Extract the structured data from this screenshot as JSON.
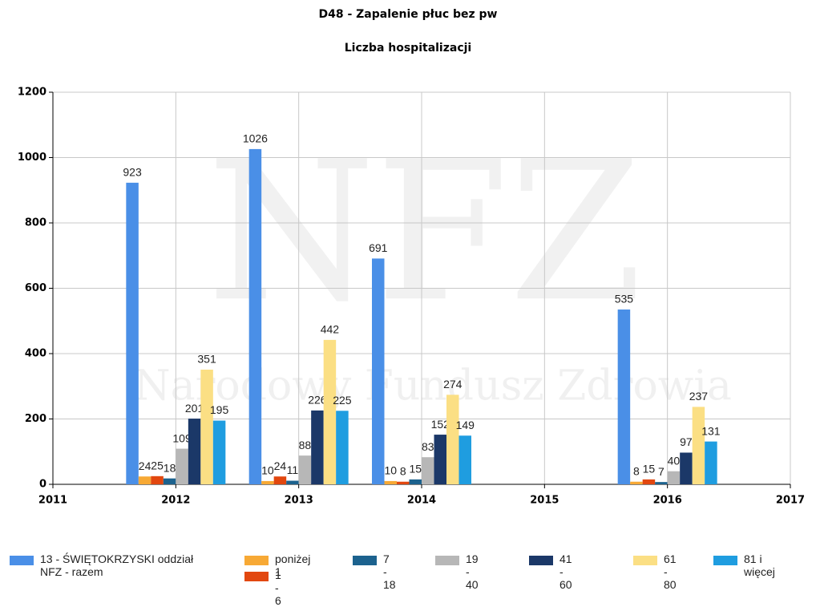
{
  "chart_data": {
    "type": "bar",
    "title": "D48 - Zapalenie płuc bez pw",
    "subtitle": "Liczba hospitalizacji",
    "watermark": [
      "NFZ",
      "Narodowy Fundusz Zdrowia"
    ],
    "x": [
      2012,
      2013,
      2014,
      2016
    ],
    "xlim": [
      2011,
      2017
    ],
    "xticks": [
      2011,
      2012,
      2013,
      2014,
      2015,
      2016,
      2017
    ],
    "ylim": [
      0,
      1200
    ],
    "yticks": [
      0,
      200,
      400,
      600,
      800,
      1000,
      1200
    ],
    "grid": true,
    "legend": "bottom",
    "series": [
      {
        "name": "13 - ŚWIĘTOKRZYSKI oddział NFZ - razem",
        "color": "#4a8fe7",
        "values": [
          923,
          1026,
          691,
          535
        ]
      },
      {
        "name": "poniżej 1",
        "color": "#f7a935",
        "values": [
          24,
          10,
          10,
          8
        ]
      },
      {
        "name": "1 - 6",
        "color": "#e2470f",
        "values": [
          25,
          24,
          8,
          15
        ]
      },
      {
        "name": "7 - 18",
        "color": "#1c628e",
        "values": [
          18,
          11,
          15,
          7
        ]
      },
      {
        "name": "19 - 40",
        "color": "#b7b7b7",
        "values": [
          109,
          88,
          83,
          40
        ]
      },
      {
        "name": "41 - 60",
        "color": "#1b3868",
        "values": [
          201,
          226,
          152,
          97
        ]
      },
      {
        "name": "61 - 80",
        "color": "#fbdf84",
        "values": [
          351,
          442,
          274,
          237
        ]
      },
      {
        "name": "81 i więcej",
        "color": "#1f9de0",
        "values": [
          195,
          225,
          149,
          131
        ]
      }
    ]
  }
}
